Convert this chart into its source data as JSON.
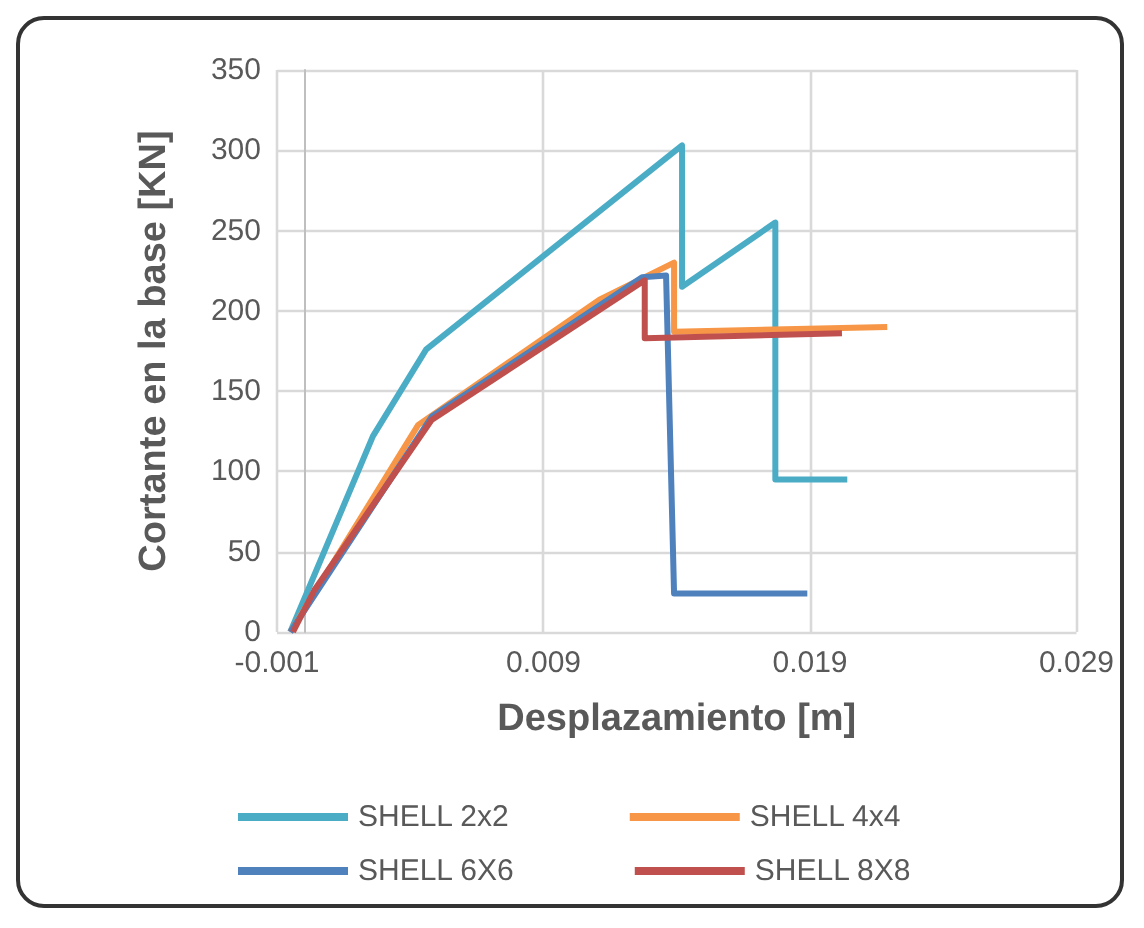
{
  "chart_data": {
    "type": "line",
    "xlabel": "Desplazamiento [m]",
    "ylabel": "Cortante en la base [KN]",
    "xlim": [
      -0.001,
      0.029
    ],
    "xticks": [
      -0.001,
      0.009,
      0.019,
      0.029
    ],
    "ylim": [
      0,
      350
    ],
    "yticks": [
      0,
      50,
      100,
      150,
      200,
      250,
      300,
      350
    ],
    "grid": true,
    "legend": "bottom",
    "marker": "none",
    "line_style": "solid",
    "series": [
      {
        "name": "SHELL 2x2",
        "color": "#4bacc6",
        "x": [
          -0.0005,
          0.0026,
          0.0046,
          0.0142,
          0.0142,
          0.0177,
          0.0177,
          0.0204
        ],
        "values": [
          0,
          122,
          176,
          303,
          215,
          255,
          95,
          95
        ]
      },
      {
        "name": "SHELL 4x4",
        "color": "#f79646",
        "x": [
          -0.0005,
          0.0043,
          0.0111,
          0.0139,
          0.0139,
          0.0219
        ],
        "values": [
          0,
          129,
          207,
          230,
          187,
          190
        ]
      },
      {
        "name": "SHELL 6X6",
        "color": "#4f81bd",
        "x": [
          -0.0005,
          0.0048,
          0.0127,
          0.0136,
          0.0139,
          0.0189
        ],
        "values": [
          0,
          134,
          221,
          222,
          24,
          24
        ]
      },
      {
        "name": "SHELL 8X8",
        "color": "#c0504d",
        "x": [
          -0.0004,
          0.0004,
          0.0048,
          0.0128,
          0.0128,
          0.0202
        ],
        "values": [
          0,
          26,
          132,
          219,
          183,
          186
        ]
      }
    ]
  }
}
